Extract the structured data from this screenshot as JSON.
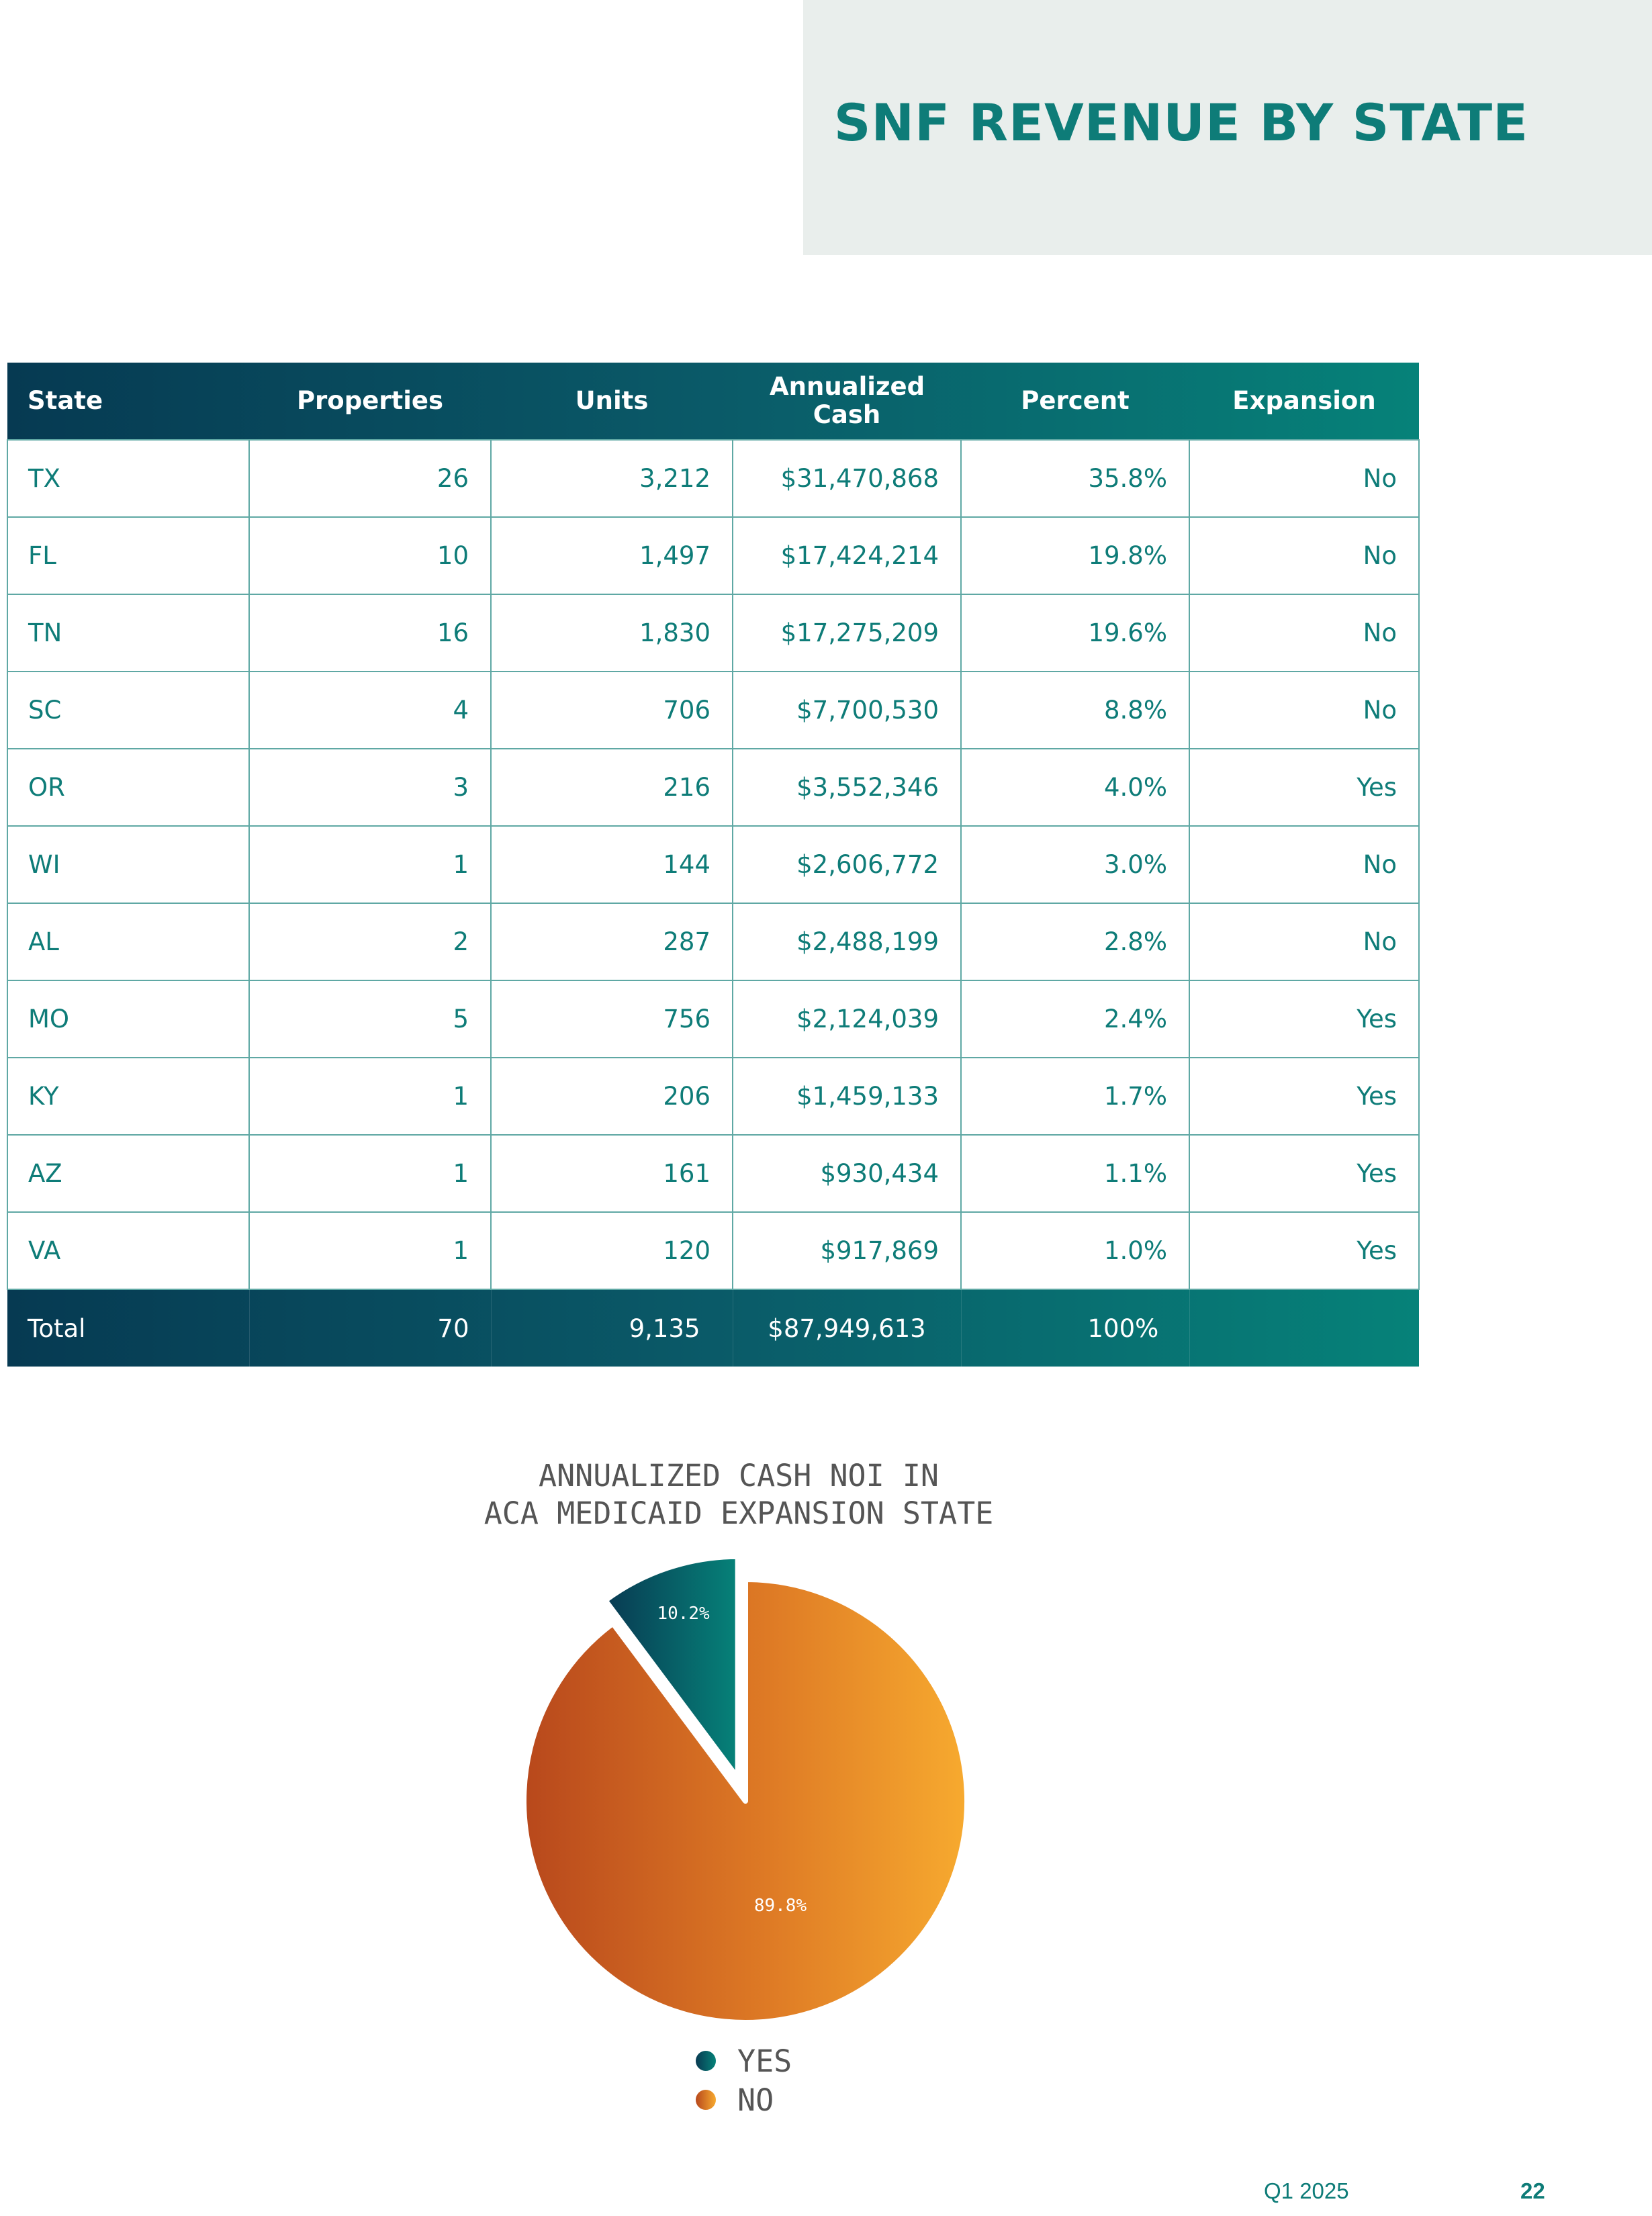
{
  "header": {
    "title": "SNF REVENUE BY STATE"
  },
  "table": {
    "columns": [
      "State",
      "Properties",
      "Units",
      "Annualized Cash",
      "Percent",
      "Expansion"
    ],
    "rows": [
      [
        "TX",
        "26",
        "3,212",
        "$31,470,868",
        "35.8%",
        "No"
      ],
      [
        "FL",
        "10",
        "1,497",
        "$17,424,214",
        "19.8%",
        "No"
      ],
      [
        "TN",
        "16",
        "1,830",
        "$17,275,209",
        "19.6%",
        "No"
      ],
      [
        "SC",
        "4",
        "706",
        "$7,700,530",
        "8.8%",
        "No"
      ],
      [
        "OR",
        "3",
        "216",
        "$3,552,346",
        "4.0%",
        "Yes"
      ],
      [
        "WI",
        "1",
        "144",
        "$2,606,772",
        "3.0%",
        "No"
      ],
      [
        "AL",
        "2",
        "287",
        "$2,488,199",
        "2.8%",
        "No"
      ],
      [
        "MO",
        "5",
        "756",
        "$2,124,039",
        "2.4%",
        "Yes"
      ],
      [
        "KY",
        "1",
        "206",
        "$1,459,133",
        "1.7%",
        "Yes"
      ],
      [
        "AZ",
        "1",
        "161",
        "$930,434",
        "1.1%",
        "Yes"
      ],
      [
        "VA",
        "1",
        "120",
        "$917,869",
        "1.0%",
        "Yes"
      ]
    ],
    "total": {
      "label": "Total",
      "properties": "70",
      "units": "9,135",
      "cash": "$87,949,613",
      "percent": "100%"
    }
  },
  "chart_data": {
    "type": "pie",
    "title": "ANNUALIZED CASH NOI IN\nACA MEDICAID EXPANSION STATE",
    "categories": [
      "YES",
      "NO"
    ],
    "values": [
      10.2,
      89.8
    ],
    "labels": [
      "10.2%",
      "89.8%"
    ],
    "exploded": [
      "YES"
    ],
    "colors": [
      "#0a5566",
      "#e07a25"
    ],
    "legend_placement": "bottom"
  },
  "footer": {
    "period": "Q1 2025",
    "page": "22"
  }
}
